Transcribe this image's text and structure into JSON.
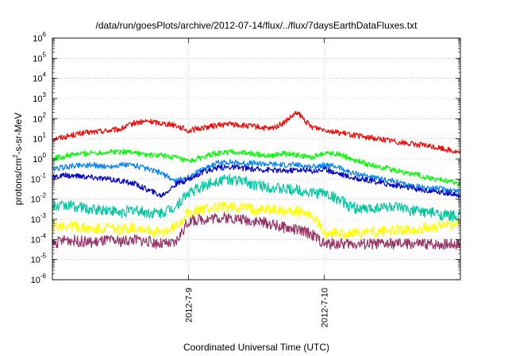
{
  "chart_data": {
    "type": "line",
    "title": "/data/run/goesPlots/archive/2012-07-14/flux/../flux/7daysEarthDataFluxes.txt",
    "xlabel": "Coordinated Universal Time (UTC)",
    "ylabel": "protons/cm²-s-sr-MeV",
    "xlim": [
      "2012-07-08 00:00",
      "2012-07-11 00:00"
    ],
    "x_ticks": [
      "2012-7-9",
      "2012-7-10"
    ],
    "y_scale": "log",
    "ylim": [
      1e-06,
      1000000.0
    ],
    "y_ticks": [
      "10^-6",
      "10^-5",
      "10^-4",
      "10^-3",
      "10^-2",
      "10^-1",
      "10^0",
      "10^1",
      "10^2",
      "10^3",
      "10^4",
      "10^5",
      "10^6"
    ],
    "grid": true,
    "series": [
      {
        "color": "#ff0000",
        "x": [
          0,
          0.1,
          0.2,
          0.3,
          0.4,
          0.5,
          0.6,
          0.7,
          0.8,
          0.9,
          1.0,
          1.1,
          1.2,
          1.3,
          1.4,
          1.5,
          1.6,
          1.7,
          1.8,
          1.9,
          2.0,
          2.1,
          2.2,
          2.3,
          2.4,
          2.5,
          2.6,
          2.7,
          2.8,
          2.9,
          3.0
        ],
        "y": [
          10,
          13,
          18,
          22,
          25,
          30,
          60,
          75,
          60,
          50,
          25,
          35,
          45,
          55,
          45,
          40,
          30,
          60,
          200,
          40,
          30,
          20,
          16,
          12,
          10,
          8,
          6,
          5,
          4,
          3,
          2
        ]
      },
      {
        "color": "#00ff00",
        "x": [
          0,
          0.1,
          0.2,
          0.3,
          0.4,
          0.5,
          0.6,
          0.7,
          0.8,
          0.9,
          1.0,
          1.1,
          1.2,
          1.3,
          1.4,
          1.5,
          1.6,
          1.7,
          1.8,
          1.9,
          2.0,
          2.1,
          2.2,
          2.3,
          2.4,
          2.5,
          2.6,
          2.7,
          2.8,
          2.9,
          3.0
        ],
        "y": [
          1,
          1.4,
          1.8,
          2,
          2.2,
          2.3,
          2.2,
          1.5,
          1.5,
          1.2,
          0.7,
          1.2,
          1.8,
          2.2,
          2,
          1.7,
          1.5,
          1.8,
          1.5,
          1.2,
          2,
          1.8,
          1,
          0.6,
          0.4,
          0.3,
          0.2,
          0.15,
          0.1,
          0.08,
          0.06
        ]
      },
      {
        "color": "#0080ff",
        "x": [
          0,
          0.1,
          0.2,
          0.3,
          0.4,
          0.5,
          0.6,
          0.7,
          0.8,
          0.9,
          1.0,
          1.1,
          1.2,
          1.3,
          1.4,
          1.5,
          1.6,
          1.7,
          1.8,
          1.9,
          2.0,
          2.1,
          2.2,
          2.3,
          2.4,
          2.5,
          2.6,
          2.7,
          2.8,
          2.9,
          3.0
        ],
        "y": [
          0.3,
          0.4,
          0.5,
          0.5,
          0.4,
          0.5,
          0.5,
          0.3,
          0.2,
          0.08,
          0.12,
          0.3,
          0.6,
          0.7,
          0.6,
          0.6,
          0.55,
          0.5,
          0.5,
          0.4,
          0.5,
          0.4,
          0.2,
          0.15,
          0.1,
          0.08,
          0.05,
          0.04,
          0.035,
          0.03,
          0.025
        ]
      },
      {
        "color": "#0000cc",
        "x": [
          0,
          0.1,
          0.2,
          0.3,
          0.4,
          0.5,
          0.6,
          0.7,
          0.8,
          0.9,
          1.0,
          1.1,
          1.2,
          1.3,
          1.4,
          1.5,
          1.6,
          1.7,
          1.8,
          1.9,
          2.0,
          2.1,
          2.2,
          2.3,
          2.4,
          2.5,
          2.6,
          2.7,
          2.8,
          2.9,
          3.0
        ],
        "y": [
          0.12,
          0.15,
          0.14,
          0.12,
          0.1,
          0.08,
          0.06,
          0.03,
          0.015,
          0.05,
          0.1,
          0.2,
          0.35,
          0.4,
          0.35,
          0.3,
          0.3,
          0.25,
          0.3,
          0.25,
          0.3,
          0.2,
          0.12,
          0.09,
          0.07,
          0.05,
          0.04,
          0.03,
          0.025,
          0.02,
          0.015
        ]
      },
      {
        "color": "#00c8a0",
        "x": [
          0,
          0.1,
          0.2,
          0.3,
          0.4,
          0.5,
          0.6,
          0.7,
          0.8,
          0.9,
          1.0,
          1.1,
          1.2,
          1.3,
          1.4,
          1.5,
          1.6,
          1.7,
          1.8,
          1.9,
          2.0,
          2.1,
          2.2,
          2.3,
          2.4,
          2.5,
          2.6,
          2.7,
          2.8,
          2.9,
          3.0
        ],
        "y": [
          0.004,
          0.005,
          0.004,
          0.003,
          0.003,
          0.002,
          0.003,
          0.002,
          0.002,
          0.004,
          0.02,
          0.04,
          0.08,
          0.1,
          0.08,
          0.05,
          0.04,
          0.03,
          0.03,
          0.02,
          0.02,
          0.01,
          0.004,
          0.003,
          0.004,
          0.004,
          0.003,
          0.0025,
          0.002,
          0.0015,
          0.0015
        ]
      },
      {
        "color": "#ffff00",
        "x": [
          0,
          0.1,
          0.2,
          0.3,
          0.4,
          0.5,
          0.6,
          0.7,
          0.8,
          0.9,
          1.0,
          1.1,
          1.2,
          1.3,
          1.4,
          1.5,
          1.6,
          1.7,
          1.8,
          1.9,
          2.0,
          2.1,
          2.2,
          2.3,
          2.4,
          2.5,
          2.6,
          2.7,
          2.8,
          2.9,
          3.0
        ],
        "y": [
          0.0004,
          0.0005,
          0.0004,
          0.0003,
          0.0004,
          0.0003,
          0.0004,
          0.0003,
          0.0002,
          0.0004,
          0.002,
          0.003,
          0.004,
          0.004,
          0.004,
          0.003,
          0.003,
          0.0025,
          0.0025,
          0.002,
          0.0002,
          0.0002,
          0.0002,
          0.00022,
          0.00025,
          0.00028,
          0.0003,
          0.00035,
          0.0004,
          0.0005,
          0.0006
        ]
      },
      {
        "color": "#993366",
        "x": [
          0,
          0.1,
          0.2,
          0.3,
          0.4,
          0.5,
          0.6,
          0.7,
          0.8,
          0.9,
          1.0,
          1.1,
          1.2,
          1.3,
          1.4,
          1.5,
          1.6,
          1.7,
          1.8,
          1.9,
          2.0,
          2.1,
          2.2,
          2.3,
          2.4,
          2.5,
          2.6,
          2.7,
          2.8,
          2.9,
          3.0
        ],
        "y": [
          6e-05,
          0.0001,
          8e-05,
          7e-05,
          9e-05,
          8e-05,
          0.0001,
          8e-05,
          6e-05,
          6e-05,
          0.0008,
          0.001,
          0.0012,
          0.0012,
          0.001,
          0.0008,
          0.0006,
          0.0004,
          0.0003,
          0.0002,
          6e-05,
          6e-05,
          6e-05,
          6e-05,
          6e-05,
          6e-05,
          6e-05,
          6e-05,
          6e-05,
          6e-05,
          6e-05
        ]
      }
    ]
  }
}
